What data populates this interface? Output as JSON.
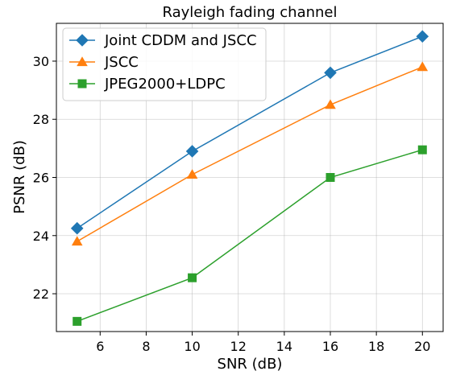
{
  "chart_data": {
    "type": "line",
    "title": "Rayleigh fading channel",
    "xlabel": "SNR (dB)",
    "ylabel": "PSNR (dB)",
    "xlim": [
      4.1,
      20.9
    ],
    "ylim": [
      20.7,
      31.3
    ],
    "xticks": [
      6,
      8,
      10,
      12,
      14,
      16,
      18,
      20
    ],
    "yticks": [
      22,
      24,
      26,
      28,
      30
    ],
    "grid": true,
    "legend_position": "upper-left",
    "x": [
      5,
      10,
      16,
      20
    ],
    "series": [
      {
        "name": "Joint CDDM and JSCC",
        "values": [
          24.25,
          26.9,
          29.6,
          30.85
        ],
        "color": "#1f77b4",
        "marker": "diamond"
      },
      {
        "name": "JSCC",
        "values": [
          23.8,
          26.1,
          28.5,
          29.8
        ],
        "color": "#ff7f0e",
        "marker": "triangle"
      },
      {
        "name": "JPEG2000+LDPC",
        "values": [
          21.05,
          22.55,
          26.0,
          26.95
        ],
        "color": "#2ca02c",
        "marker": "square"
      }
    ]
  }
}
